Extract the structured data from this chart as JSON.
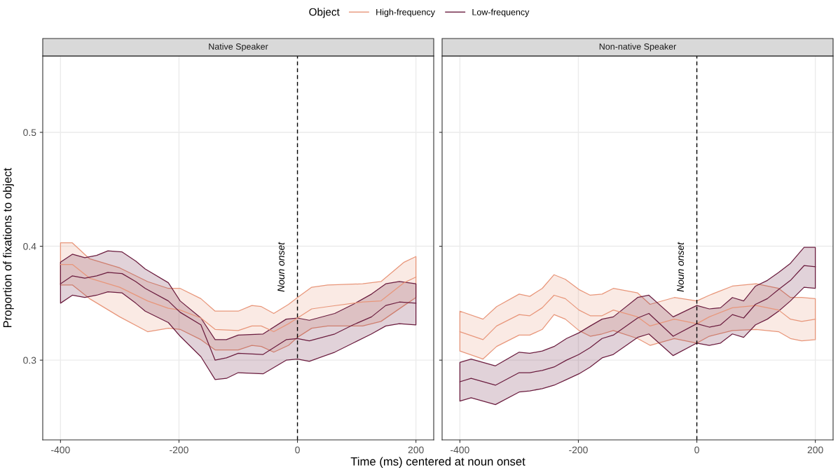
{
  "chart_data": [
    {
      "type": "line",
      "title": "Native Speaker",
      "xlabel": "Time (ms) centered at noun onset",
      "ylabel": "Proportion of fixations to object",
      "legend_title": "Object",
      "legend": "top",
      "grid": true,
      "xlim": [
        -430,
        230
      ],
      "xticks": [
        -400,
        -200,
        0,
        200
      ],
      "ylim": [
        0.23,
        0.567
      ],
      "yticks": [
        0.3,
        0.4,
        0.5
      ],
      "ref_lines": [
        {
          "axis": "x",
          "value": 0,
          "label": "Noun onset",
          "line_style": "dashed",
          "color": "#000000"
        }
      ],
      "series": [
        {
          "name": "High-frequency",
          "color": "#e8967a",
          "x": [
            -400,
            -380,
            -351,
            -300,
            -253,
            -218,
            -198,
            -163,
            -139,
            -100,
            -77,
            -61,
            -40,
            -15,
            0,
            24,
            51,
            110,
            141,
            180,
            200
          ],
          "values": [
            0.384,
            0.384,
            0.372,
            0.364,
            0.352,
            0.3455,
            0.344,
            0.337,
            0.327,
            0.326,
            0.33,
            0.33,
            0.325,
            0.332,
            0.337,
            0.345,
            0.347,
            0.351,
            0.352,
            0.368,
            0.373
          ],
          "upper": [
            0.403,
            0.403,
            0.389,
            0.381,
            0.369,
            0.363,
            0.363,
            0.354,
            0.343,
            0.343,
            0.348,
            0.347,
            0.341,
            0.349,
            0.355,
            0.364,
            0.366,
            0.367,
            0.369,
            0.386,
            0.391
          ],
          "lower": [
            0.366,
            0.366,
            0.354,
            0.338,
            0.325,
            0.328,
            0.327,
            0.318,
            0.309,
            0.309,
            0.313,
            0.312,
            0.307,
            0.313,
            0.32,
            0.328,
            0.33,
            0.33,
            0.334,
            0.348,
            0.355
          ]
        },
        {
          "name": "Low-frequency",
          "color": "#6b1d3f",
          "x": [
            -400,
            -380,
            -359,
            -339,
            -320,
            -296,
            -273,
            -257,
            -218,
            -198,
            -163,
            -139,
            -120,
            -100,
            -58,
            -19,
            0,
            20,
            63,
            94,
            125,
            149,
            172,
            200
          ],
          "values": [
            0.367,
            0.374,
            0.372,
            0.374,
            0.377,
            0.376,
            0.369,
            0.363,
            0.352,
            0.342,
            0.331,
            0.3,
            0.302,
            0.306,
            0.305,
            0.318,
            0.319,
            0.317,
            0.323,
            0.331,
            0.338,
            0.348,
            0.351,
            0.35
          ],
          "upper": [
            0.386,
            0.393,
            0.39,
            0.392,
            0.396,
            0.395,
            0.387,
            0.38,
            0.368,
            0.352,
            0.337,
            0.318,
            0.318,
            0.322,
            0.323,
            0.336,
            0.337,
            0.335,
            0.341,
            0.349,
            0.358,
            0.367,
            0.369,
            0.367
          ],
          "lower": [
            0.35,
            0.357,
            0.355,
            0.357,
            0.36,
            0.359,
            0.35,
            0.343,
            0.333,
            0.321,
            0.303,
            0.283,
            0.284,
            0.289,
            0.288,
            0.3,
            0.301,
            0.299,
            0.307,
            0.315,
            0.323,
            0.33,
            0.332,
            0.331
          ]
        }
      ]
    },
    {
      "type": "line",
      "title": "Non-native Speaker",
      "grid": true,
      "tick_labels": "x",
      "xlim": [
        -430,
        230
      ],
      "xticks": [
        -400,
        -200,
        0,
        200
      ],
      "ylim": [
        0.23,
        0.567
      ],
      "yticks": [
        0.3,
        0.4,
        0.5
      ],
      "ref_lines": [
        {
          "axis": "x",
          "value": 0,
          "label": "Noun onset",
          "line_style": "dashed",
          "color": "#000000"
        }
      ],
      "series": [
        {
          "color": "#e8967a",
          "x": [
            -400,
            -361,
            -338,
            -300,
            -282,
            -261,
            -241,
            -222,
            -199,
            -180,
            -160,
            -141,
            -100,
            -79,
            -38,
            0,
            21,
            60,
            100,
            138,
            158,
            177,
            200
          ],
          "values": [
            0.325,
            0.318,
            0.33,
            0.34,
            0.339,
            0.346,
            0.357,
            0.354,
            0.344,
            0.339,
            0.339,
            0.344,
            0.338,
            0.33,
            0.336,
            0.332,
            0.338,
            0.346,
            0.348,
            0.344,
            0.336,
            0.334,
            0.336
          ],
          "upper": [
            0.343,
            0.336,
            0.347,
            0.358,
            0.356,
            0.363,
            0.375,
            0.371,
            0.362,
            0.357,
            0.358,
            0.363,
            0.359,
            0.349,
            0.355,
            0.352,
            0.357,
            0.365,
            0.367,
            0.363,
            0.355,
            0.355,
            0.354
          ],
          "lower": [
            0.308,
            0.301,
            0.312,
            0.322,
            0.322,
            0.327,
            0.34,
            0.336,
            0.326,
            0.321,
            0.323,
            0.326,
            0.319,
            0.313,
            0.319,
            0.315,
            0.321,
            0.326,
            0.327,
            0.325,
            0.319,
            0.317,
            0.318
          ]
        },
        {
          "color": "#6b1d3f",
          "x": [
            -400,
            -381,
            -340,
            -300,
            -282,
            -261,
            -241,
            -220,
            -199,
            -180,
            -160,
            -141,
            -100,
            -81,
            -40,
            0,
            21,
            40,
            60,
            79,
            99,
            119,
            138,
            158,
            181,
            200
          ],
          "values": [
            0.281,
            0.284,
            0.278,
            0.289,
            0.289,
            0.291,
            0.294,
            0.3,
            0.305,
            0.311,
            0.319,
            0.322,
            0.337,
            0.341,
            0.321,
            0.332,
            0.329,
            0.331,
            0.34,
            0.337,
            0.349,
            0.354,
            0.362,
            0.37,
            0.383,
            0.382
          ],
          "upper": [
            0.298,
            0.301,
            0.295,
            0.307,
            0.306,
            0.308,
            0.312,
            0.319,
            0.324,
            0.33,
            0.336,
            0.338,
            0.355,
            0.357,
            0.338,
            0.348,
            0.345,
            0.346,
            0.355,
            0.352,
            0.365,
            0.37,
            0.377,
            0.385,
            0.399,
            0.399
          ],
          "lower": [
            0.264,
            0.267,
            0.261,
            0.272,
            0.273,
            0.275,
            0.278,
            0.283,
            0.288,
            0.294,
            0.302,
            0.305,
            0.32,
            0.323,
            0.304,
            0.315,
            0.313,
            0.315,
            0.323,
            0.32,
            0.331,
            0.336,
            0.343,
            0.352,
            0.364,
            0.363
          ]
        }
      ]
    }
  ]
}
